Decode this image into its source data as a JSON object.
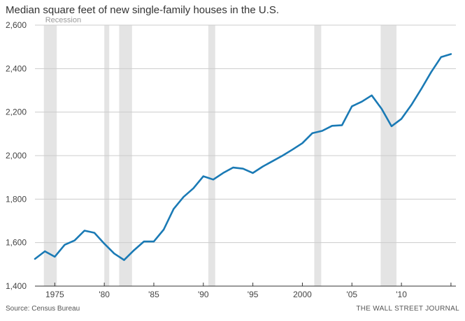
{
  "chart_data": {
    "type": "line",
    "title": "Median square feet of new single-family houses in the U.S.",
    "ylim": [
      1400,
      2600
    ],
    "xlim": [
      1973,
      2015.5
    ],
    "yticks": [
      1400,
      1600,
      1800,
      2000,
      2200,
      2400,
      2600
    ],
    "yticklabels": [
      "1,400",
      "1,600",
      "1,800",
      "2,000",
      "2,200",
      "2,400",
      "2,600"
    ],
    "xticks": [
      1975,
      1980,
      1985,
      1990,
      1995,
      2000,
      2005,
      2010,
      2015
    ],
    "xticklabels": [
      "1975",
      "'80",
      "'85",
      "'90",
      "'95",
      "2000",
      "'05",
      "'10",
      ""
    ],
    "recession_label": "Recession",
    "recessions": [
      [
        1973.9,
        1975.2
      ],
      [
        1980.0,
        1980.5
      ],
      [
        1981.5,
        1982.8
      ],
      [
        1990.5,
        1991.2
      ],
      [
        2001.2,
        2001.9
      ],
      [
        2007.9,
        2009.5
      ]
    ],
    "grid": true,
    "line_color": "#1a7ab5",
    "recession_color": "#e4e4e4",
    "series": [
      {
        "x": [
          1973,
          1974,
          1975,
          1976,
          1977,
          1978,
          1979,
          1980,
          1981,
          1982,
          1983,
          1984,
          1985,
          1986,
          1987,
          1988,
          1989,
          1990,
          1991,
          1992,
          1993,
          1994,
          1995,
          1996,
          1997,
          1998,
          1999,
          2000,
          2001,
          2002,
          2003,
          2004,
          2005,
          2006,
          2007,
          2008,
          2009,
          2010,
          2011,
          2012,
          2013,
          2014,
          2015
        ],
        "values": [
          1525,
          1560,
          1535,
          1590,
          1610,
          1655,
          1645,
          1595,
          1550,
          1520,
          1565,
          1605,
          1605,
          1660,
          1755,
          1810,
          1850,
          1905,
          1890,
          1920,
          1945,
          1940,
          1920,
          1950,
          1975,
          2000,
          2028,
          2057,
          2103,
          2114,
          2137,
          2140,
          2227,
          2248,
          2277,
          2215,
          2135,
          2169,
          2233,
          2306,
          2384,
          2453,
          2467
        ]
      }
    ]
  },
  "source": "Source: Census Bureau",
  "brand": "THE WALL STREET JOURNAL"
}
